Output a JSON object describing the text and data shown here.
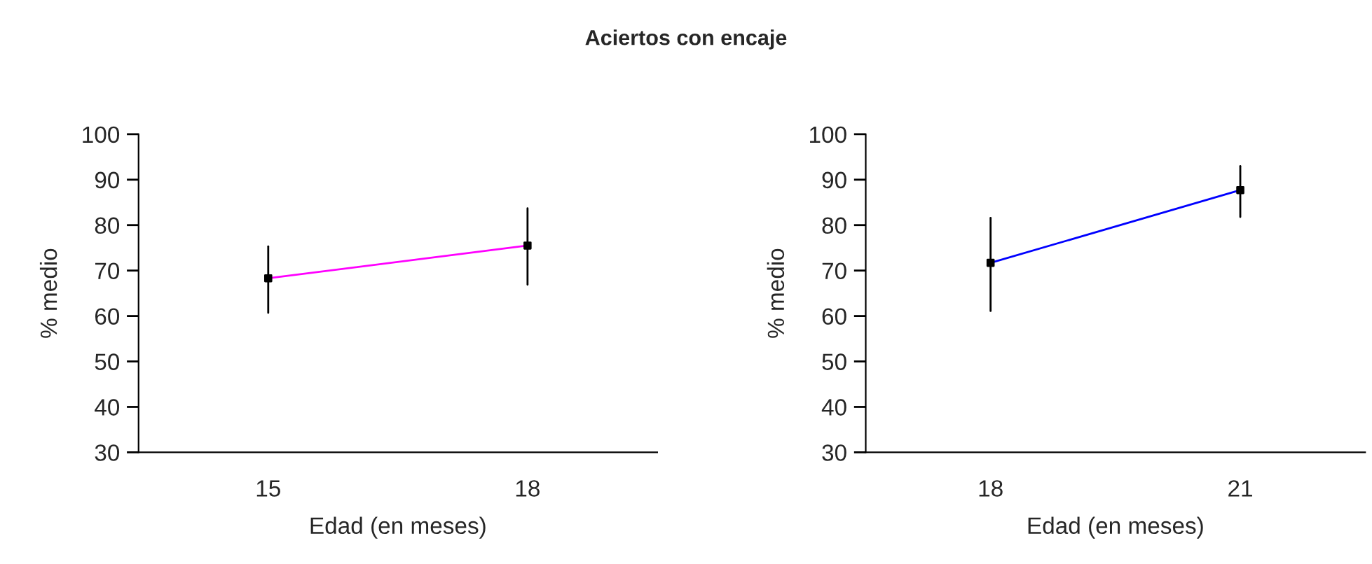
{
  "chart_data": [
    {
      "type": "line",
      "title": "Aciertos con encaje",
      "xlabel": "Edad (en meses)",
      "ylabel": "% medio",
      "categories": [
        "15",
        "18"
      ],
      "series": [
        {
          "color": "#ff00ff",
          "values": [
            68.3,
            75.5
          ],
          "errors": [
            [
              60.7,
              75.3
            ],
            [
              66.9,
              83.7
            ]
          ]
        }
      ],
      "ylim": [
        30,
        100
      ],
      "yticks": [
        30,
        40,
        50,
        60,
        70,
        80,
        90,
        100
      ],
      "marker": "square",
      "line_style": "solid",
      "grid": false,
      "legend": false
    },
    {
      "type": "line",
      "xlabel": "Edad (en meses)",
      "ylabel": "% medio",
      "categories": [
        "18",
        "21"
      ],
      "series": [
        {
          "color": "#0000ff",
          "values": [
            71.7,
            87.7
          ],
          "errors": [
            [
              61.1,
              81.6
            ],
            [
              81.8,
              93.0
            ]
          ]
        }
      ],
      "ylim": [
        30,
        100
      ],
      "yticks": [
        30,
        40,
        50,
        60,
        70,
        80,
        90,
        100
      ],
      "marker": "square",
      "line_style": "solid",
      "grid": false,
      "legend": false
    }
  ]
}
